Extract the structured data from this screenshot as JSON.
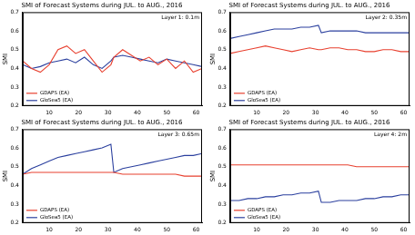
{
  "chart_data": [
    {
      "type": "line",
      "title": "SMI of Forecast Systems during JUL. to AUG., 2016",
      "y_label": "SMI",
      "annotation": "Layer 1: 0.1m",
      "x": [
        1,
        4,
        7,
        10,
        13,
        16,
        19,
        22,
        25,
        28,
        31,
        32,
        35,
        38,
        41,
        44,
        47,
        50,
        53,
        56,
        59,
        62
      ],
      "xlim": [
        1,
        62
      ],
      "xticks": [
        10,
        20,
        30,
        40,
        50,
        60
      ],
      "ylim": [
        0.2,
        0.7
      ],
      "yticks": [
        0.2,
        0.3,
        0.4,
        0.5,
        0.6,
        0.7
      ],
      "grid": false,
      "legend": "lower left",
      "series": [
        {
          "name": "GDAPS (EA)",
          "color": "#e8402f",
          "values": [
            0.44,
            0.4,
            0.38,
            0.42,
            0.5,
            0.52,
            0.48,
            0.5,
            0.44,
            0.38,
            0.42,
            0.46,
            0.5,
            0.47,
            0.44,
            0.46,
            0.42,
            0.45,
            0.4,
            0.44,
            0.38,
            0.4
          ]
        },
        {
          "name": "GloSea5 (EA)",
          "color": "#2a3f9e",
          "values": [
            0.42,
            0.4,
            0.41,
            0.43,
            0.44,
            0.45,
            0.43,
            0.46,
            0.42,
            0.4,
            0.44,
            0.46,
            0.47,
            0.46,
            0.45,
            0.44,
            0.43,
            0.45,
            0.44,
            0.43,
            0.42,
            0.41
          ]
        }
      ]
    },
    {
      "type": "line",
      "title": "SMI of Forecast Systems during JUL. to AUG., 2016",
      "y_label": "SMI",
      "annotation": "Layer 2: 0.35m",
      "x": [
        1,
        4,
        7,
        10,
        13,
        16,
        19,
        22,
        25,
        28,
        31,
        32,
        35,
        38,
        41,
        44,
        47,
        50,
        53,
        56,
        59,
        62
      ],
      "xlim": [
        1,
        62
      ],
      "xticks": [
        10,
        20,
        30,
        40,
        50,
        60
      ],
      "ylim": [
        0.2,
        0.7
      ],
      "yticks": [
        0.2,
        0.3,
        0.4,
        0.5,
        0.6,
        0.7
      ],
      "grid": false,
      "legend": "lower left",
      "series": [
        {
          "name": "GDAPS (EA)",
          "color": "#e8402f",
          "values": [
            0.48,
            0.49,
            0.5,
            0.51,
            0.52,
            0.51,
            0.5,
            0.49,
            0.5,
            0.51,
            0.5,
            0.5,
            0.51,
            0.51,
            0.5,
            0.5,
            0.49,
            0.49,
            0.5,
            0.5,
            0.49,
            0.49
          ]
        },
        {
          "name": "GloSea5 (EA)",
          "color": "#2a3f9e",
          "values": [
            0.56,
            0.57,
            0.58,
            0.59,
            0.6,
            0.61,
            0.61,
            0.61,
            0.62,
            0.62,
            0.63,
            0.59,
            0.6,
            0.6,
            0.6,
            0.6,
            0.59,
            0.59,
            0.59,
            0.59,
            0.59,
            0.59
          ]
        }
      ]
    },
    {
      "type": "line",
      "title": "SMI of Forecast Systems during JUL. to AUG., 2016",
      "y_label": "SMI",
      "annotation": "Layer 3: 0.65m",
      "x": [
        1,
        4,
        7,
        10,
        13,
        16,
        19,
        22,
        25,
        28,
        31,
        32,
        35,
        38,
        41,
        44,
        47,
        50,
        53,
        56,
        59,
        62
      ],
      "xlim": [
        1,
        62
      ],
      "xticks": [
        10,
        20,
        30,
        40,
        50,
        60
      ],
      "ylim": [
        0.2,
        0.7
      ],
      "yticks": [
        0.2,
        0.3,
        0.4,
        0.5,
        0.6,
        0.7
      ],
      "grid": false,
      "legend": "lower left",
      "series": [
        {
          "name": "GDAPS (EA)",
          "color": "#e8402f",
          "values": [
            0.46,
            0.47,
            0.47,
            0.47,
            0.47,
            0.47,
            0.47,
            0.47,
            0.47,
            0.47,
            0.47,
            0.47,
            0.46,
            0.46,
            0.46,
            0.46,
            0.46,
            0.46,
            0.46,
            0.45,
            0.45,
            0.45
          ]
        },
        {
          "name": "GloSea5 (EA)",
          "color": "#2a3f9e",
          "values": [
            0.46,
            0.49,
            0.51,
            0.53,
            0.55,
            0.56,
            0.57,
            0.58,
            0.59,
            0.6,
            0.62,
            0.47,
            0.49,
            0.5,
            0.51,
            0.52,
            0.53,
            0.54,
            0.55,
            0.56,
            0.56,
            0.57
          ]
        }
      ]
    },
    {
      "type": "line",
      "title": "SMI of Forecast Systems during JUL. to AUG., 2016",
      "y_label": "SMI",
      "annotation": "Layer 4: 2m",
      "x": [
        1,
        4,
        7,
        10,
        13,
        16,
        19,
        22,
        25,
        28,
        31,
        32,
        35,
        38,
        41,
        44,
        47,
        50,
        53,
        56,
        59,
        62
      ],
      "xlim": [
        1,
        62
      ],
      "xticks": [
        10,
        20,
        30,
        40,
        50,
        60
      ],
      "ylim": [
        0.2,
        0.7
      ],
      "yticks": [
        0.2,
        0.3,
        0.4,
        0.5,
        0.6,
        0.7
      ],
      "grid": false,
      "legend": "lower left",
      "series": [
        {
          "name": "GDAPS (EA)",
          "color": "#e8402f",
          "values": [
            0.51,
            0.51,
            0.51,
            0.51,
            0.51,
            0.51,
            0.51,
            0.51,
            0.51,
            0.51,
            0.51,
            0.51,
            0.51,
            0.51,
            0.51,
            0.5,
            0.5,
            0.5,
            0.5,
            0.5,
            0.5,
            0.5
          ]
        },
        {
          "name": "GloSea5 (EA)",
          "color": "#2a3f9e",
          "values": [
            0.32,
            0.32,
            0.33,
            0.33,
            0.34,
            0.34,
            0.35,
            0.35,
            0.36,
            0.36,
            0.37,
            0.31,
            0.31,
            0.32,
            0.32,
            0.32,
            0.33,
            0.33,
            0.34,
            0.34,
            0.35,
            0.35
          ]
        }
      ]
    }
  ]
}
